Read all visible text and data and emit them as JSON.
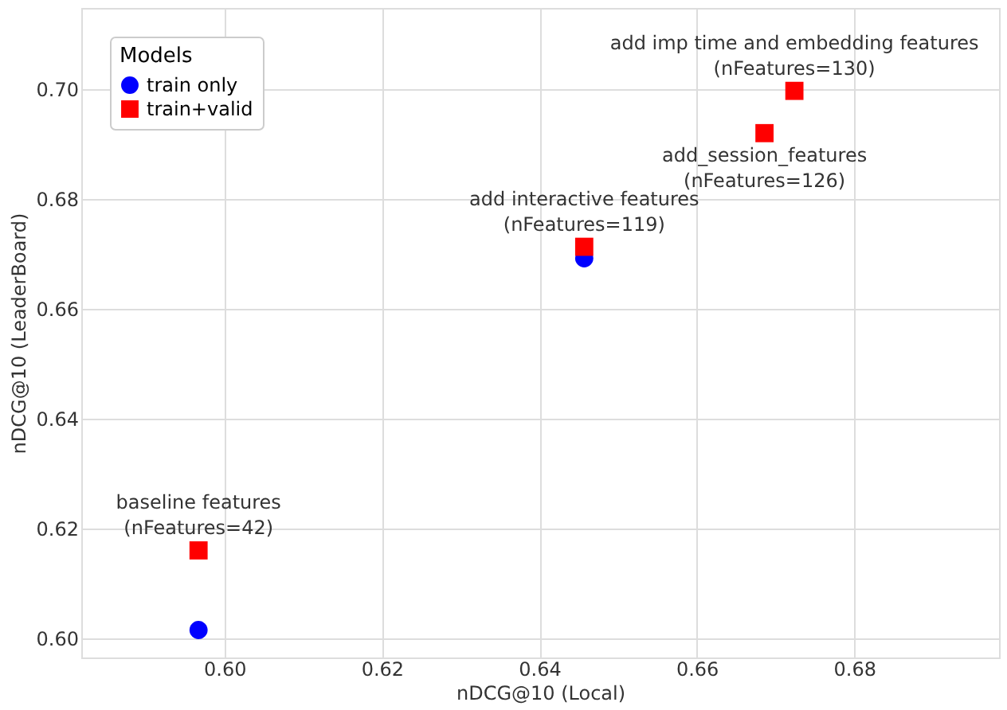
{
  "chart_data": {
    "type": "scatter",
    "xlabel": "nDCG@10 (Local)",
    "ylabel": "nDCG@10 (LeaderBoard)",
    "legend_title": "Models",
    "legend": "top left",
    "grid": true,
    "xlim": [
      0.5818,
      0.6984
    ],
    "xticks": [
      {
        "value": 0.6,
        "label": "0.60"
      },
      0.62,
      0.64,
      0.66,
      0.68
    ],
    "ylim": [
      0.5965,
      0.7148
    ],
    "yticks": [
      {
        "value": 0.6,
        "label": "0.60"
      },
      0.62,
      0.64,
      0.66,
      0.68,
      {
        "value": 0.7,
        "label": "0.70"
      }
    ],
    "series": [
      {
        "name": "train only",
        "color": "#0000ff",
        "marker": "circle",
        "x": [
          0.5967,
          0.6457
        ],
        "values": [
          0.6015,
          0.6692
        ]
      },
      {
        "name": "train+valid",
        "color": "#ff0000",
        "marker": "square",
        "x": [
          0.5967,
          0.6457,
          0.6686,
          0.6724
        ],
        "values": [
          0.616,
          0.6713,
          0.692,
          0.6997
        ]
      }
    ],
    "annotations": [
      {
        "text": "baseline features\n(nFeatures=42)",
        "x": 0.5967,
        "y": 0.616
      },
      {
        "text": "add interactive features\n(nFeatures=119)",
        "x": 0.6457,
        "y": 0.6713
      },
      {
        "text": "add_session_features\n(nFeatures=126)",
        "x": 0.6686,
        "y": 0.692
      },
      {
        "text": "add imp time and embedding features\n(nFeatures=130)",
        "x": 0.6724,
        "y": 0.6997
      }
    ]
  }
}
